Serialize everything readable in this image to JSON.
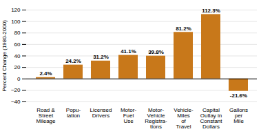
{
  "chart_data": {
    "type": "bar",
    "ylabel": "Percent Change (1980-2000)",
    "categories": [
      "Road &\nStreet\nMileage",
      "Popu-\nlation",
      "Licensed\nDrivers",
      "Motor-\nFuel\nUse",
      "Motor-\nVehicle\nRegistra-\ntions",
      "Vehicle-\nMiles\nof\nTravel",
      "Capital\nOutlay in\nConstant\nDollars",
      "Gallons\nper\nMile"
    ],
    "values": [
      2.4,
      24.2,
      31.2,
      41.1,
      39.8,
      81.2,
      112.3,
      -21.6
    ],
    "value_labels": [
      "2.4%",
      "24.2%",
      "31.2%",
      "41.1%",
      "39.8%",
      "81.2%",
      "112.3%",
      "-21.6%"
    ],
    "data_labels": true,
    "color": "#C8781A",
    "ylim": [
      -40,
      120
    ],
    "yticks": [
      -40,
      -20,
      0,
      20,
      40,
      60,
      80,
      100,
      120
    ],
    "grid": true
  }
}
